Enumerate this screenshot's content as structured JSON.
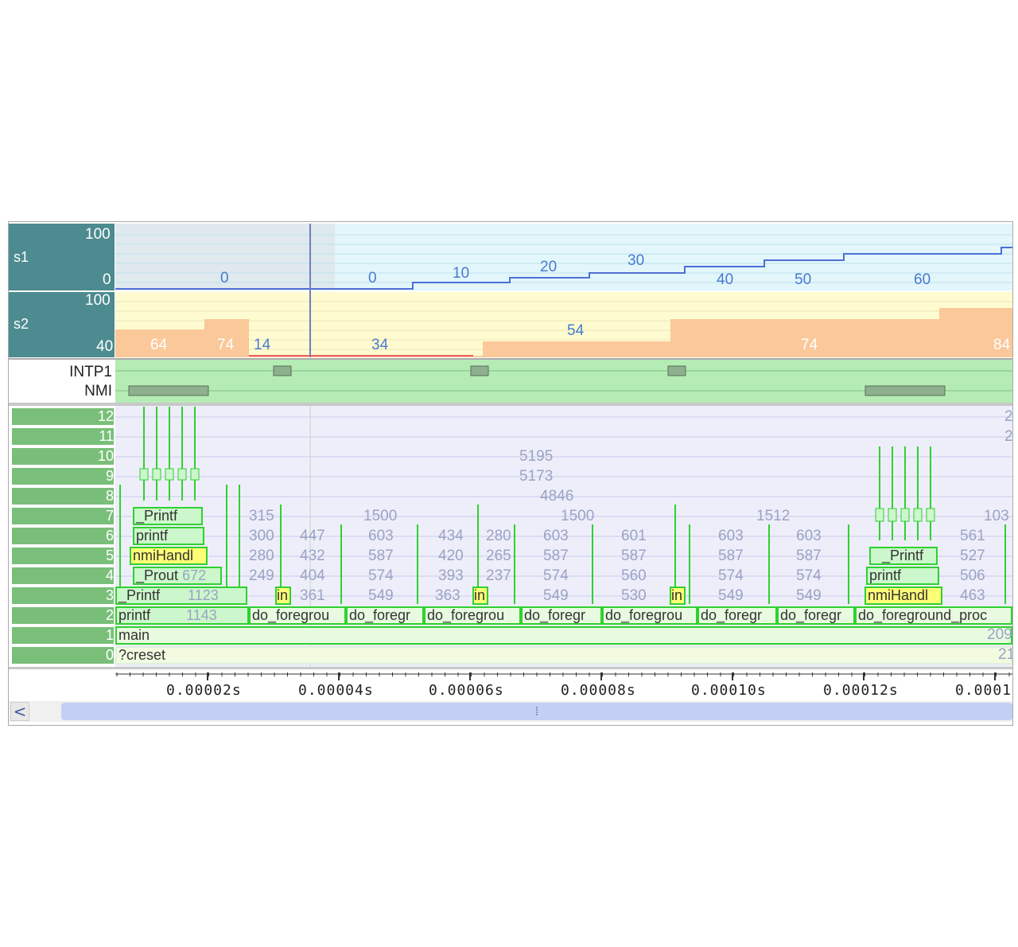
{
  "s1": {
    "label": "s1",
    "ymax": "100",
    "ymin": "0",
    "values": [
      "0",
      "0",
      "10",
      "20",
      "30",
      "40",
      "50",
      "60"
    ]
  },
  "s2": {
    "label": "s2",
    "ymax": "100",
    "ymin": "40",
    "values": [
      "64",
      "74",
      "14",
      "34",
      "54",
      "74",
      "84"
    ]
  },
  "signals": {
    "intp1": "INTP1",
    "nmi": "NMI"
  },
  "rows": [
    "12",
    "11",
    "10",
    "9",
    "8",
    "7",
    "6",
    "5",
    "4",
    "3",
    "2",
    "1",
    "0"
  ],
  "values_gray": {
    "r10": "5195",
    "r9": "5173",
    "r8": "4846",
    "r7": [
      "315",
      "1500",
      "1500",
      "1512",
      "103"
    ],
    "r6": [
      "300",
      "447",
      "603",
      "434",
      "280",
      "603",
      "601",
      "603",
      "603",
      "561"
    ],
    "r5": [
      "280",
      "432",
      "587",
      "420",
      "265",
      "587",
      "587",
      "587",
      "587",
      "527"
    ],
    "r4": [
      "249",
      "404",
      "574",
      "393",
      "237",
      "574",
      "560",
      "574",
      "574",
      "506"
    ],
    "r3": [
      "361",
      "549",
      "363",
      "549",
      "530",
      "549",
      "549",
      "463"
    ],
    "right_top": [
      "2",
      "2"
    ],
    "right_main": "209",
    "right_creset": "21"
  },
  "frames": {
    "printf_left": "printf",
    "printf_left_val": "1143",
    "Printf_left": "_Printf",
    "Printf_left_val": "1123",
    "Prout_left": "_Prout",
    "Prout_left_val": "672",
    "nmiHandl_left": "nmiHandl",
    "printf6_left": "printf",
    "Printf7_left": "_Printf",
    "in1": "in",
    "in2": "in",
    "in3": "in",
    "dofg": [
      "do_foregrou",
      "do_foregr",
      "do_foregrou",
      "do_foregr",
      "do_foregrou",
      "do_foregr",
      "do_foregr",
      "do_foreground_proc"
    ],
    "main": "main",
    "creset": "?creset",
    "nmiHandl_right": "nmiHandl",
    "printf_right": "printf",
    "Printf_right": "_Printf"
  },
  "axis": [
    "0.00002s",
    "0.00004s",
    "0.00006s",
    "0.00008s",
    "0.00010s",
    "0.00012s",
    "0.0001"
  ],
  "scrollbar": {
    "left_arrow": "<",
    "thumb_grip": "⁞"
  }
}
